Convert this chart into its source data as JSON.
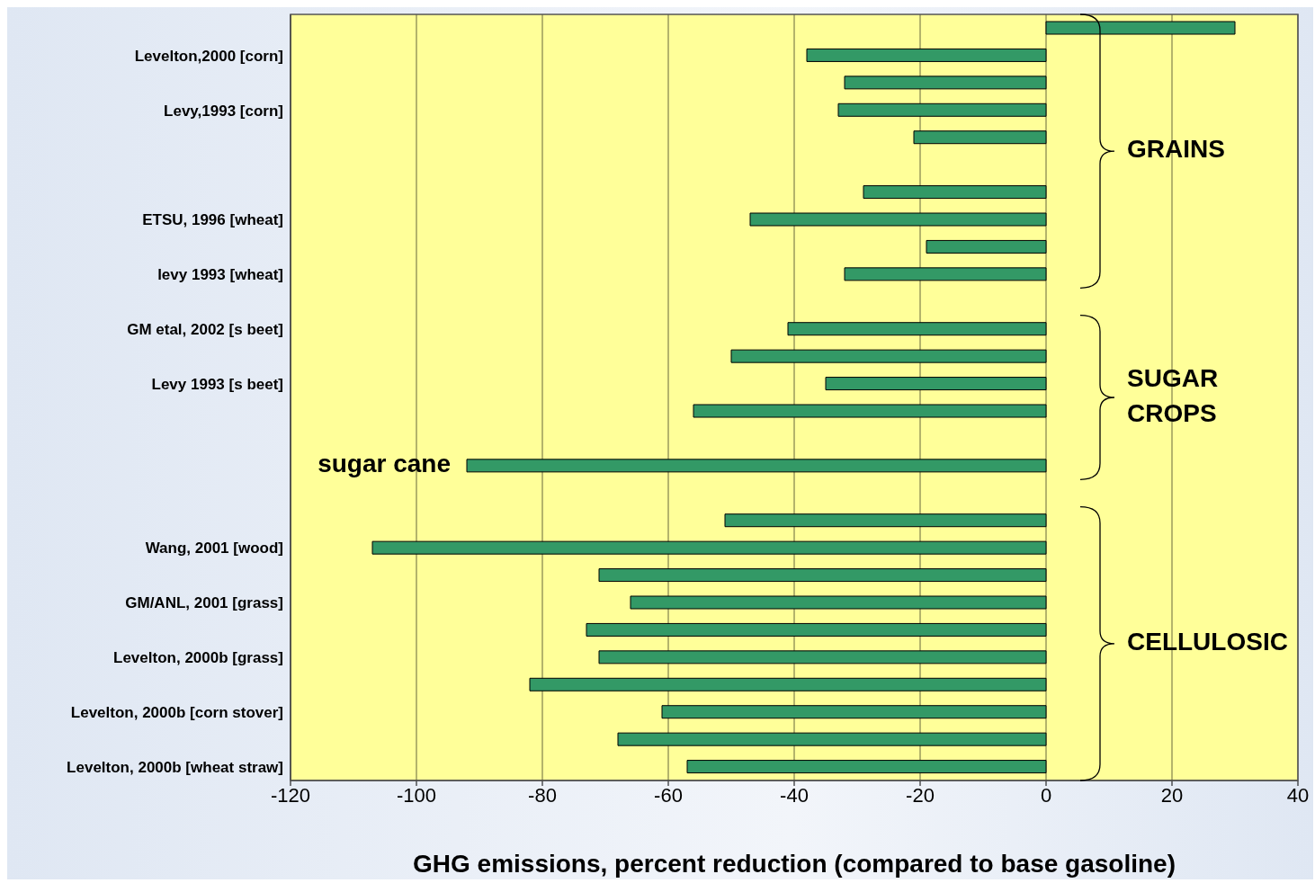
{
  "chart_data": {
    "type": "bar",
    "orientation": "horizontal",
    "xlabel": "GHG emissions, percent reduction (compared to base gasoline)",
    "categories": [
      null,
      "Levelton,2000 [corn]",
      null,
      "Levy,1993 [corn]",
      null,
      null,
      null,
      "ETSU, 1996 [wheat]",
      null,
      "levy 1993 [wheat]",
      null,
      "GM etal, 2002 [s beet]",
      null,
      "Levy 1993 [s beet]",
      null,
      null,
      null,
      null,
      null,
      "Wang, 2001 [wood]",
      null,
      "GM/ANL, 2001 [grass]",
      null,
      "Levelton, 2000b [grass]",
      null,
      "Levelton, 2000b [corn stover]",
      null,
      "Levelton, 2000b [wheat straw]"
    ],
    "values": [
      30,
      -38,
      -32,
      -33,
      -21,
      null,
      -29,
      -47,
      -19,
      -32,
      null,
      -41,
      -50,
      -35,
      -56,
      null,
      -92,
      null,
      -51,
      -107,
      -71,
      -66,
      -73,
      -71,
      -82,
      -61,
      -68,
      -57
    ],
    "color": "#339966",
    "xlim": [
      -120,
      40
    ],
    "xticks": [
      -120,
      -100,
      -80,
      -60,
      -40,
      -20,
      0,
      20,
      40
    ],
    "grid": "x",
    "legend": false,
    "annotations": [
      "GRAINS",
      "SUGAR CROPS",
      "CELLULOSIC",
      "sugar cane"
    ]
  }
}
